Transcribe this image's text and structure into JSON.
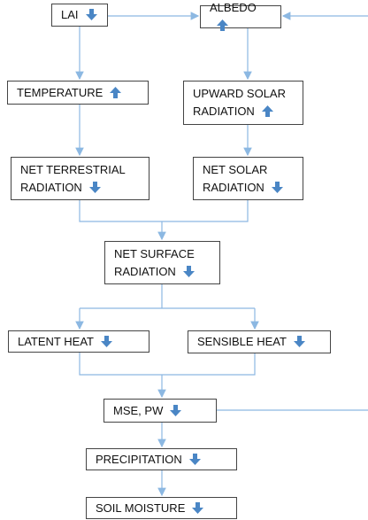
{
  "nodes": [
    {
      "label": "LAI",
      "trend": "down"
    },
    {
      "label": "ALBEDO",
      "trend": "up"
    },
    {
      "label": "TEMPERATURE",
      "trend": "up"
    },
    {
      "label": "UPWARD SOLAR RADIATION",
      "trend": "up"
    },
    {
      "label": "NET TERRESTRIAL RADIATION",
      "trend": "down"
    },
    {
      "label": "NET SOLAR RADIATION",
      "trend": "down"
    },
    {
      "label": "NET SURFACE RADIATION",
      "trend": "down"
    },
    {
      "label": "LATENT HEAT",
      "trend": "down"
    },
    {
      "label": "SENSIBLE HEAT",
      "trend": "down"
    },
    {
      "label": "MSE, PW",
      "trend": "down"
    },
    {
      "label": "PRECIPITATION",
      "trend": "down"
    },
    {
      "label": "SOIL MOISTURE",
      "trend": "down"
    }
  ]
}
